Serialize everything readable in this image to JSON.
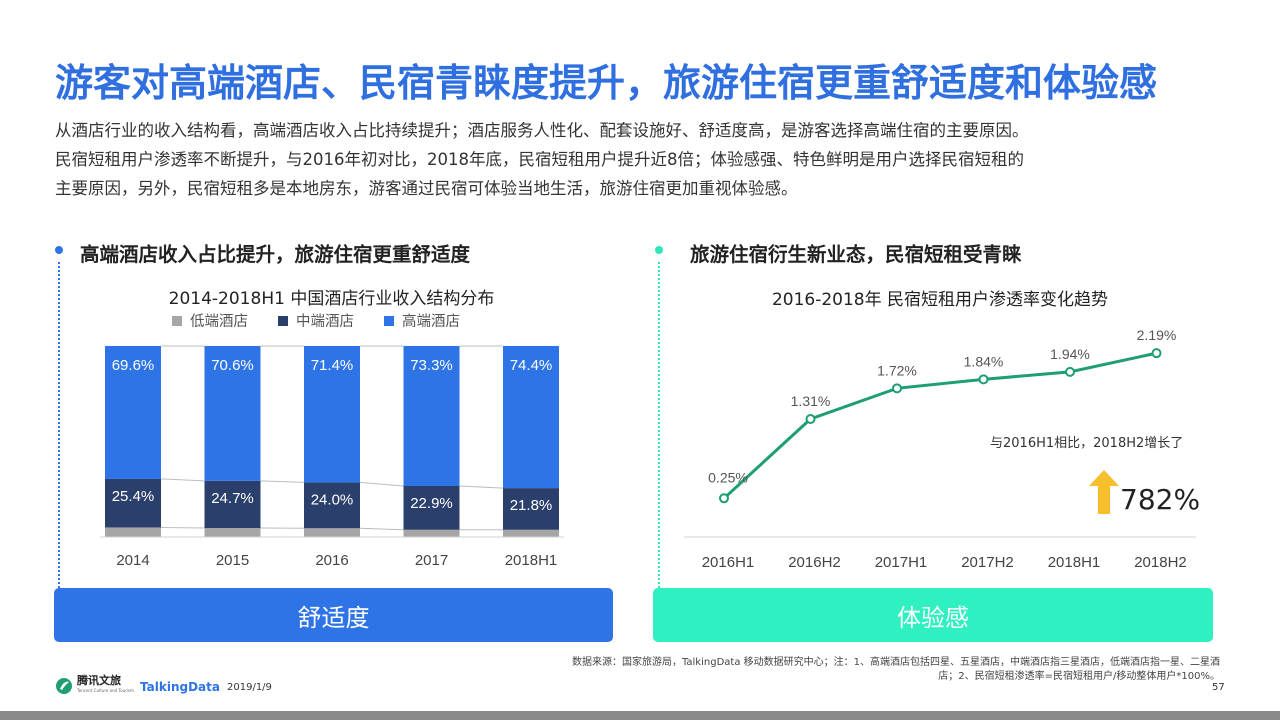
{
  "title": "游客对高端酒店、民宿青睐度提升，旅游住宿更重舒适度和体验感",
  "intro": [
    "从酒店行业的收入结构看，高端酒店收入占比持续提升；酒店服务人性化、配套设施好、舒适度高，是游客选择高端住宿的主要原因。",
    "民宿短租用户渗透率不断提升，与2016年初对比，2018年底，民宿短租用户提升近8倍；体验感强、特色鲜明是用户选择民宿短租的",
    "主要原因，另外，民宿短租多是本地房东，游客通过民宿可体验当地生活，旅游住宿更加重视体验感。"
  ],
  "left": {
    "heading": "高端酒店收入占比提升，旅游住宿更重舒适度",
    "pill": "舒适度",
    "accent": "#2E74E6",
    "dot_color": "#2E74E6"
  },
  "right": {
    "heading": "旅游住宿衍生新业态，民宿短租受青睐",
    "pill": "体验感",
    "accent": "#2EF0C0",
    "dot_color": "#2EE6B8",
    "annotation": "与2016H1相比，2018H2增长了",
    "growth": "782%"
  },
  "chart_data": [
    {
      "type": "bar",
      "stacked": true,
      "title": "2014-2018H1 中国酒店行业收入结构分布",
      "categories": [
        "2014",
        "2015",
        "2016",
        "2017",
        "2018H1"
      ],
      "series": [
        {
          "name": "低端酒店",
          "color": "#A6A6A6",
          "values": [
            5.0,
            4.7,
            4.6,
            3.8,
            3.8
          ]
        },
        {
          "name": "中端酒店",
          "color": "#2B3F6C",
          "values": [
            25.4,
            24.7,
            24.0,
            22.9,
            21.8
          ],
          "labels": [
            "25.4%",
            "24.7%",
            "24.0%",
            "22.9%",
            "21.8%"
          ]
        },
        {
          "name": "高端酒店",
          "color": "#2E74E6",
          "values": [
            69.6,
            70.6,
            71.4,
            73.3,
            74.4
          ],
          "labels": [
            "69.6%",
            "70.6%",
            "71.4%",
            "73.3%",
            "74.4%"
          ]
        }
      ],
      "ylim": [
        0,
        100
      ],
      "legend": "top"
    },
    {
      "type": "line",
      "title": "2016-2018年 民宿短租用户渗透率变化趋势",
      "categories": [
        "2016H1",
        "2016H2",
        "2017H1",
        "2017H2",
        "2018H1",
        "2018H2"
      ],
      "series": [
        {
          "color": "#1E9E72",
          "values": [
            0.25,
            1.31,
            1.72,
            1.84,
            1.94,
            2.19
          ],
          "labels": [
            "0.25%",
            "1.31%",
            "1.72%",
            "1.84%",
            "1.94%",
            "2.19%"
          ]
        }
      ],
      "ylim": [
        0,
        2.5
      ]
    }
  ],
  "source": [
    "数据来源：国家旅游局，TalkingData  移动数据研究中心；注：1、高端酒店包括四星、五星酒店，中端酒店指三星酒店，低端酒店指一星、二星酒",
    "店；2、民宿短租渗透率=民宿短租用户/移动整体用户*100%。"
  ],
  "footer": {
    "logo1": "腾讯文旅",
    "logo1_sub": "Tencent Culture and Tourism",
    "logo2": "TalkingData",
    "date": "2019/1/9",
    "page": "57"
  }
}
